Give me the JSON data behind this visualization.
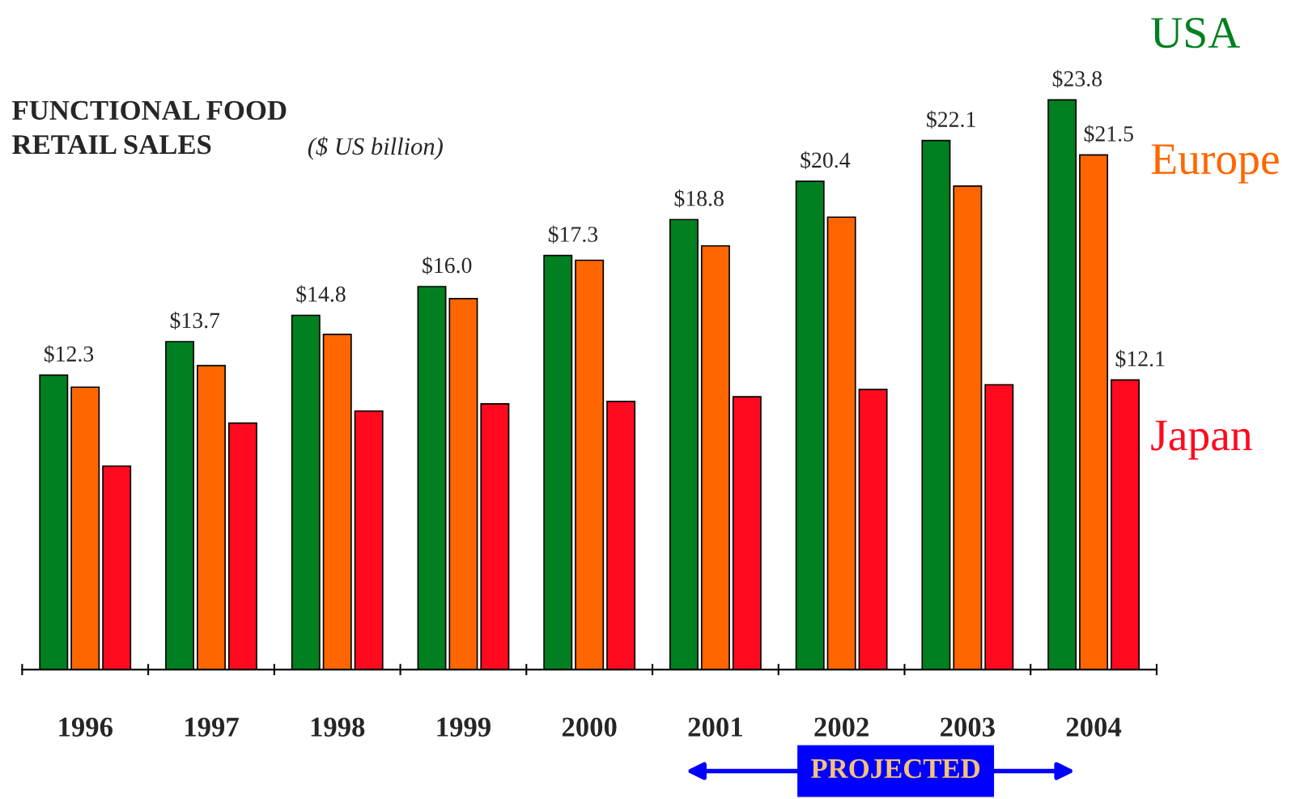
{
  "chart_data": {
    "type": "bar",
    "title": "FUNCTIONAL FOOD\nRETAIL SALES",
    "subtitle": "($ US billion)",
    "categories": [
      "1996",
      "1997",
      "1998",
      "1999",
      "2000",
      "2001",
      "2002",
      "2003",
      "2004"
    ],
    "series": [
      {
        "name": "USA",
        "color": "#008020",
        "values": [
          12.3,
          13.7,
          14.8,
          16.0,
          17.3,
          18.8,
          20.4,
          22.1,
          23.8
        ],
        "value_labels": [
          "$12.3",
          "$13.7",
          "$14.8",
          "$16.0",
          "$17.3",
          "$18.8",
          "$20.4",
          "$22.1",
          "$23.8"
        ]
      },
      {
        "name": "Europe",
        "color": "#ff6600",
        "values": [
          11.8,
          12.7,
          14.0,
          15.5,
          17.1,
          17.7,
          18.9,
          20.2,
          21.5
        ],
        "value_labels": [
          null,
          null,
          null,
          null,
          null,
          null,
          null,
          null,
          "$21.5"
        ]
      },
      {
        "name": "Japan",
        "color": "#ff0a1e",
        "values": [
          8.5,
          10.3,
          10.8,
          11.1,
          11.2,
          11.4,
          11.7,
          11.9,
          12.1
        ],
        "value_labels": [
          null,
          null,
          null,
          null,
          null,
          null,
          null,
          null,
          "$12.1"
        ]
      }
    ],
    "annotations": [
      "PROJECTED"
    ],
    "legend": false,
    "grid": false
  }
}
